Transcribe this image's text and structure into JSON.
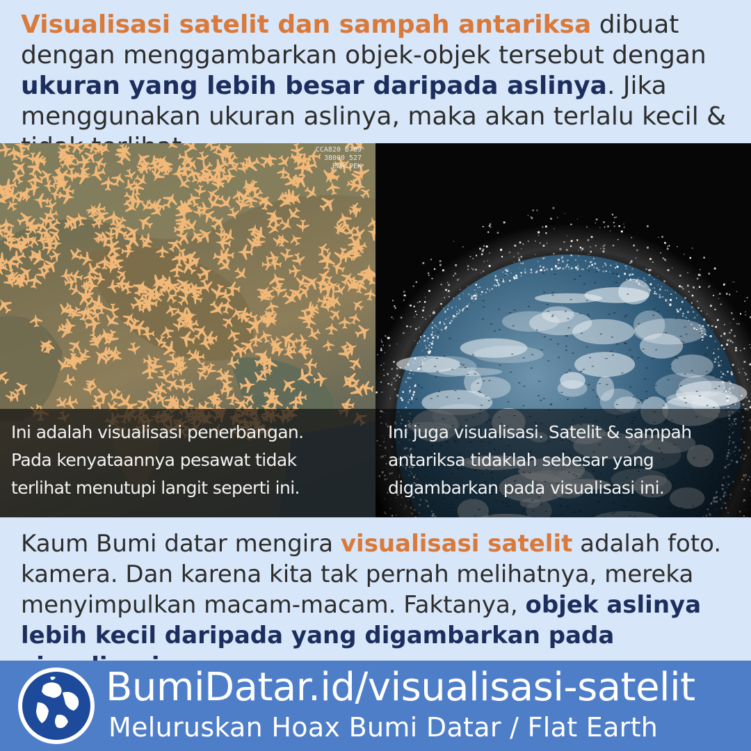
{
  "top": {
    "p1": "Visualisasi satelit dan sampah antariksa",
    "p2": " dibuat dengan menggambarkan objek-objek tersebut dengan ",
    "p3": "ukuran yang lebih besar daripada aslinya",
    "p4": ". Jika menggunakan ukuran aslinya, maka akan terlalu kecil & tidak terlihat."
  },
  "left_panel": {
    "callsign": [
      "CCA820 B789",
      "38000 527",
      "EWR PEK"
    ],
    "caption": [
      "Ini adalah visualisasi penerbangan.",
      "Pada kenyataannya pesawat tidak",
      "terlihat menutupi langit seperti ini."
    ]
  },
  "right_panel": {
    "caption": [
      "Ini juga visualisasi. Satelit & sampah",
      "antariksa tidaklah sebesar yang",
      "digambarkan pada visualisasi ini."
    ]
  },
  "bottom": {
    "p1": "Kaum Bumi datar mengira ",
    "p2": "visualisasi satelit",
    "p3": " adalah foto. kamera. Dan karena kita tak pernah melihatnya, mereka menyimpulkan macam-macam. Faktanya, ",
    "p4": "objek aslinya lebih kecil daripada yang digambarkan pada visualisasi",
    "p5": "."
  },
  "footer": {
    "url": "BumiDatar.id/visualisasi-satelit",
    "tagline": "Meluruskan Hoax Bumi Datar / Flat Earth"
  },
  "colors": {
    "background": "#d7e6f8",
    "accent": "#d9793a",
    "emphasis": "#1b2e5e",
    "footer": "#4f7ec9",
    "plane": "#f2b878"
  }
}
